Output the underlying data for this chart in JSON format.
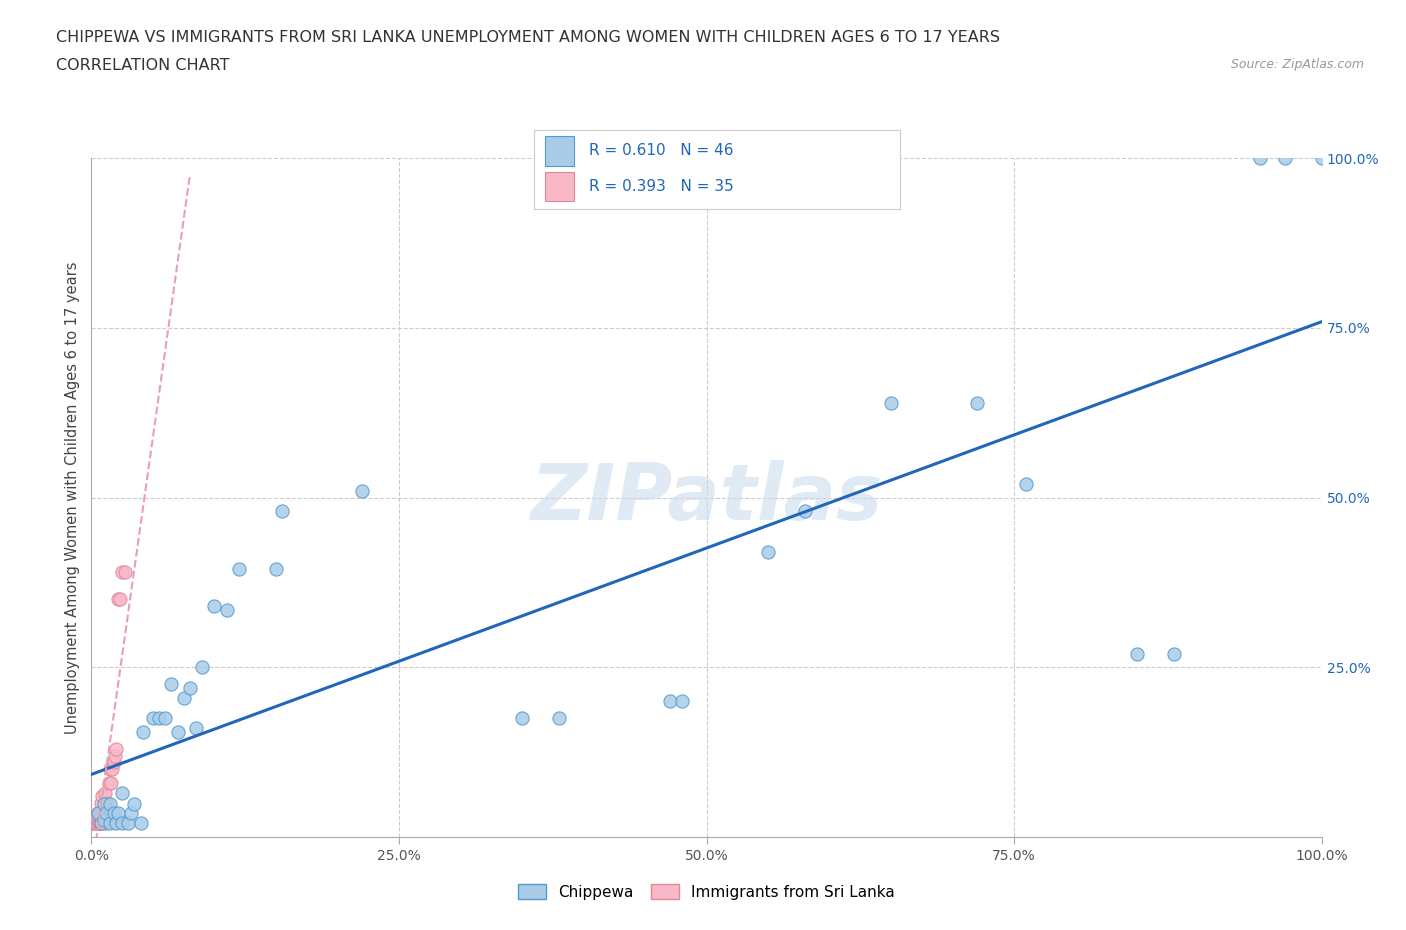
{
  "title_line1": "CHIPPEWA VS IMMIGRANTS FROM SRI LANKA UNEMPLOYMENT AMONG WOMEN WITH CHILDREN AGES 6 TO 17 YEARS",
  "title_line2": "CORRELATION CHART",
  "source_text": "Source: ZipAtlas.com",
  "ylabel": "Unemployment Among Women with Children Ages 6 to 17 years",
  "watermark_text": "ZIPatlas",
  "chippewa_R": 0.61,
  "chippewa_N": 46,
  "srilanka_R": 0.393,
  "srilanka_N": 35,
  "chippewa_color": "#a8cce8",
  "chippewa_edge": "#5599cc",
  "srilanka_color": "#f8b8c8",
  "srilanka_edge": "#e08898",
  "trendline_blue": "#2266bb",
  "trendline_pink": "#e8a0b0",
  "xlim": [
    0,
    1.0
  ],
  "ylim": [
    0,
    1.0
  ],
  "xtick_vals": [
    0.0,
    0.25,
    0.5,
    0.75,
    1.0
  ],
  "xtick_labels": [
    "0.0%",
    "25.0%",
    "50.0%",
    "75.0%",
    "100.0%"
  ],
  "ytick_vals_right": [
    0.25,
    0.5,
    0.75,
    1.0
  ],
  "ytick_labels_right": [
    "25.0%",
    "50.0%",
    "75.0%",
    "100.0%"
  ],
  "chippewa_x": [
    0.005,
    0.008,
    0.01,
    0.01,
    0.012,
    0.015,
    0.015,
    0.018,
    0.02,
    0.022,
    0.025,
    0.025,
    0.03,
    0.032,
    0.035,
    0.04,
    0.042,
    0.05,
    0.055,
    0.06,
    0.065,
    0.07,
    0.075,
    0.08,
    0.085,
    0.09,
    0.1,
    0.11,
    0.12,
    0.15,
    0.155,
    0.22,
    0.35,
    0.38,
    0.47,
    0.48,
    0.55,
    0.58,
    0.65,
    0.72,
    0.76,
    0.85,
    0.88,
    0.95,
    0.97,
    1.0
  ],
  "chippewa_y": [
    0.035,
    0.02,
    0.025,
    0.048,
    0.035,
    0.02,
    0.048,
    0.035,
    0.02,
    0.035,
    0.02,
    0.065,
    0.02,
    0.035,
    0.048,
    0.02,
    0.155,
    0.175,
    0.175,
    0.175,
    0.225,
    0.155,
    0.205,
    0.22,
    0.16,
    0.25,
    0.34,
    0.335,
    0.395,
    0.395,
    0.48,
    0.51,
    0.175,
    0.175,
    0.2,
    0.2,
    0.42,
    0.48,
    0.64,
    0.64,
    0.52,
    0.27,
    0.27,
    1.0,
    1.0,
    1.0
  ],
  "srilanka_x": [
    0.0,
    0.001,
    0.002,
    0.003,
    0.003,
    0.004,
    0.004,
    0.005,
    0.005,
    0.005,
    0.006,
    0.006,
    0.007,
    0.007,
    0.008,
    0.008,
    0.008,
    0.009,
    0.01,
    0.01,
    0.011,
    0.012,
    0.012,
    0.013,
    0.014,
    0.015,
    0.016,
    0.017,
    0.018,
    0.019,
    0.02,
    0.022,
    0.023,
    0.025,
    0.027
  ],
  "srilanka_y": [
    0.02,
    0.02,
    0.025,
    0.02,
    0.025,
    0.02,
    0.03,
    0.02,
    0.025,
    0.035,
    0.02,
    0.03,
    0.02,
    0.035,
    0.02,
    0.03,
    0.05,
    0.06,
    0.02,
    0.035,
    0.065,
    0.02,
    0.035,
    0.05,
    0.08,
    0.1,
    0.08,
    0.1,
    0.11,
    0.12,
    0.13,
    0.35,
    0.35,
    0.39,
    0.39
  ]
}
